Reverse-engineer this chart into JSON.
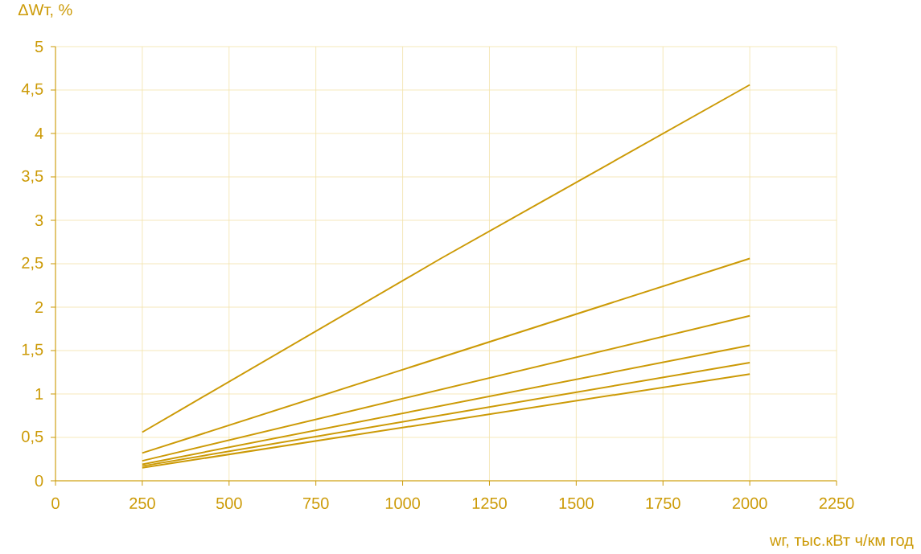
{
  "chart_data": {
    "type": "line",
    "xlabel": "wг, тыс.кВт ч/км год",
    "ylabel": "ΔWт, %",
    "xlim": [
      0,
      2250
    ],
    "xticks": [
      0,
      250,
      500,
      750,
      1000,
      1250,
      1500,
      1750,
      2000,
      2250
    ],
    "ylim": [
      0,
      5
    ],
    "yticks": [
      0,
      {
        "value": 0.5,
        "label": "0,5"
      },
      1,
      {
        "value": 1.5,
        "label": "1,5"
      },
      2,
      {
        "value": 2.5,
        "label": "2,5"
      },
      3,
      {
        "value": 3.5,
        "label": "3,5"
      },
      4,
      {
        "value": 4.5,
        "label": "4,5"
      },
      5
    ],
    "grid": true,
    "marker": "none",
    "line_style": "solid",
    "series": [
      {
        "color": "#cc9a06",
        "x": [
          250,
          1110,
          2000
        ],
        "values": [
          0.56,
          2.56,
          4.56
        ]
      },
      {
        "color": "#cc9a06",
        "x": [
          250,
          2000
        ],
        "values": [
          0.32,
          2.56
        ]
      },
      {
        "color": "#cc9a06",
        "x": [
          250,
          2000
        ],
        "values": [
          0.23,
          1.9
        ]
      },
      {
        "color": "#cc9a06",
        "x": [
          250,
          2000
        ],
        "values": [
          0.19,
          1.56
        ]
      },
      {
        "color": "#cc9a06",
        "x": [
          250,
          2000
        ],
        "values": [
          0.17,
          1.36
        ]
      },
      {
        "color": "#cc9a06",
        "x": [
          250,
          2000
        ],
        "values": [
          0.15,
          1.23
        ]
      }
    ]
  }
}
